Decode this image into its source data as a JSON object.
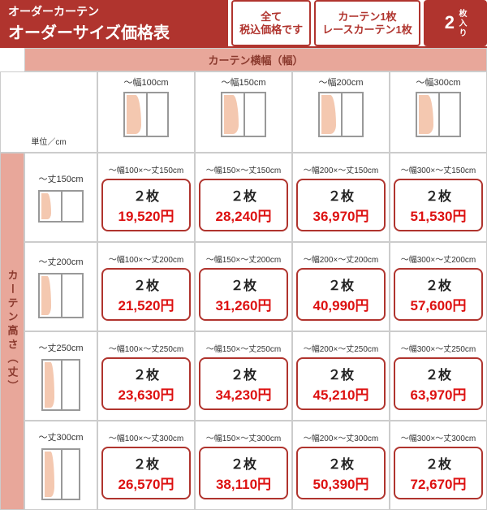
{
  "header": {
    "subtitle": "オーダーカーテン",
    "title": "オーダーサイズ価格表",
    "badge1_line1": "全て",
    "badge1_line2": "税込価格です",
    "badge2_line1": "カーテン1枚",
    "badge2_line2": "レースカーテン1枚",
    "badge3_main": "2",
    "badge3_sub": "枚入り"
  },
  "width_header": "カーテン横幅（幅）",
  "height_header": "カーテン高さ（丈）",
  "unit_label": "単位／cm",
  "qty_label": "２枚",
  "colors": {
    "brand": "#b0342e",
    "light": "#e8a79a",
    "price": "#dd1111"
  },
  "columns": [
    {
      "label": "〜幅100cm"
    },
    {
      "label": "〜幅150cm"
    },
    {
      "label": "〜幅200cm"
    },
    {
      "label": "〜幅300cm"
    }
  ],
  "rows": [
    {
      "label": "〜丈150cm",
      "cells": [
        {
          "range": "〜幅100×〜丈150cm",
          "price": "19,520円"
        },
        {
          "range": "〜幅150×〜丈150cm",
          "price": "28,240円"
        },
        {
          "range": "〜幅200×〜丈150cm",
          "price": "36,970円"
        },
        {
          "range": "〜幅300×〜丈150cm",
          "price": "51,530円"
        }
      ]
    },
    {
      "label": "〜丈200cm",
      "cells": [
        {
          "range": "〜幅100×〜丈200cm",
          "price": "21,520円"
        },
        {
          "range": "〜幅150×〜丈200cm",
          "price": "31,260円"
        },
        {
          "range": "〜幅200×〜丈200cm",
          "price": "40,990円"
        },
        {
          "range": "〜幅300×〜丈200cm",
          "price": "57,600円"
        }
      ]
    },
    {
      "label": "〜丈250cm",
      "cells": [
        {
          "range": "〜幅100×〜丈250cm",
          "price": "23,630円"
        },
        {
          "range": "〜幅150×〜丈250cm",
          "price": "34,230円"
        },
        {
          "range": "〜幅200×〜丈250cm",
          "price": "45,210円"
        },
        {
          "range": "〜幅300×〜丈250cm",
          "price": "63,970円"
        }
      ]
    },
    {
      "label": "〜丈300cm",
      "cells": [
        {
          "range": "〜幅100×〜丈300cm",
          "price": "26,570円"
        },
        {
          "range": "〜幅150×〜丈300cm",
          "price": "38,110円"
        },
        {
          "range": "〜幅200×〜丈300cm",
          "price": "50,390円"
        },
        {
          "range": "〜幅300×〜丈300cm",
          "price": "72,670円"
        }
      ]
    }
  ]
}
